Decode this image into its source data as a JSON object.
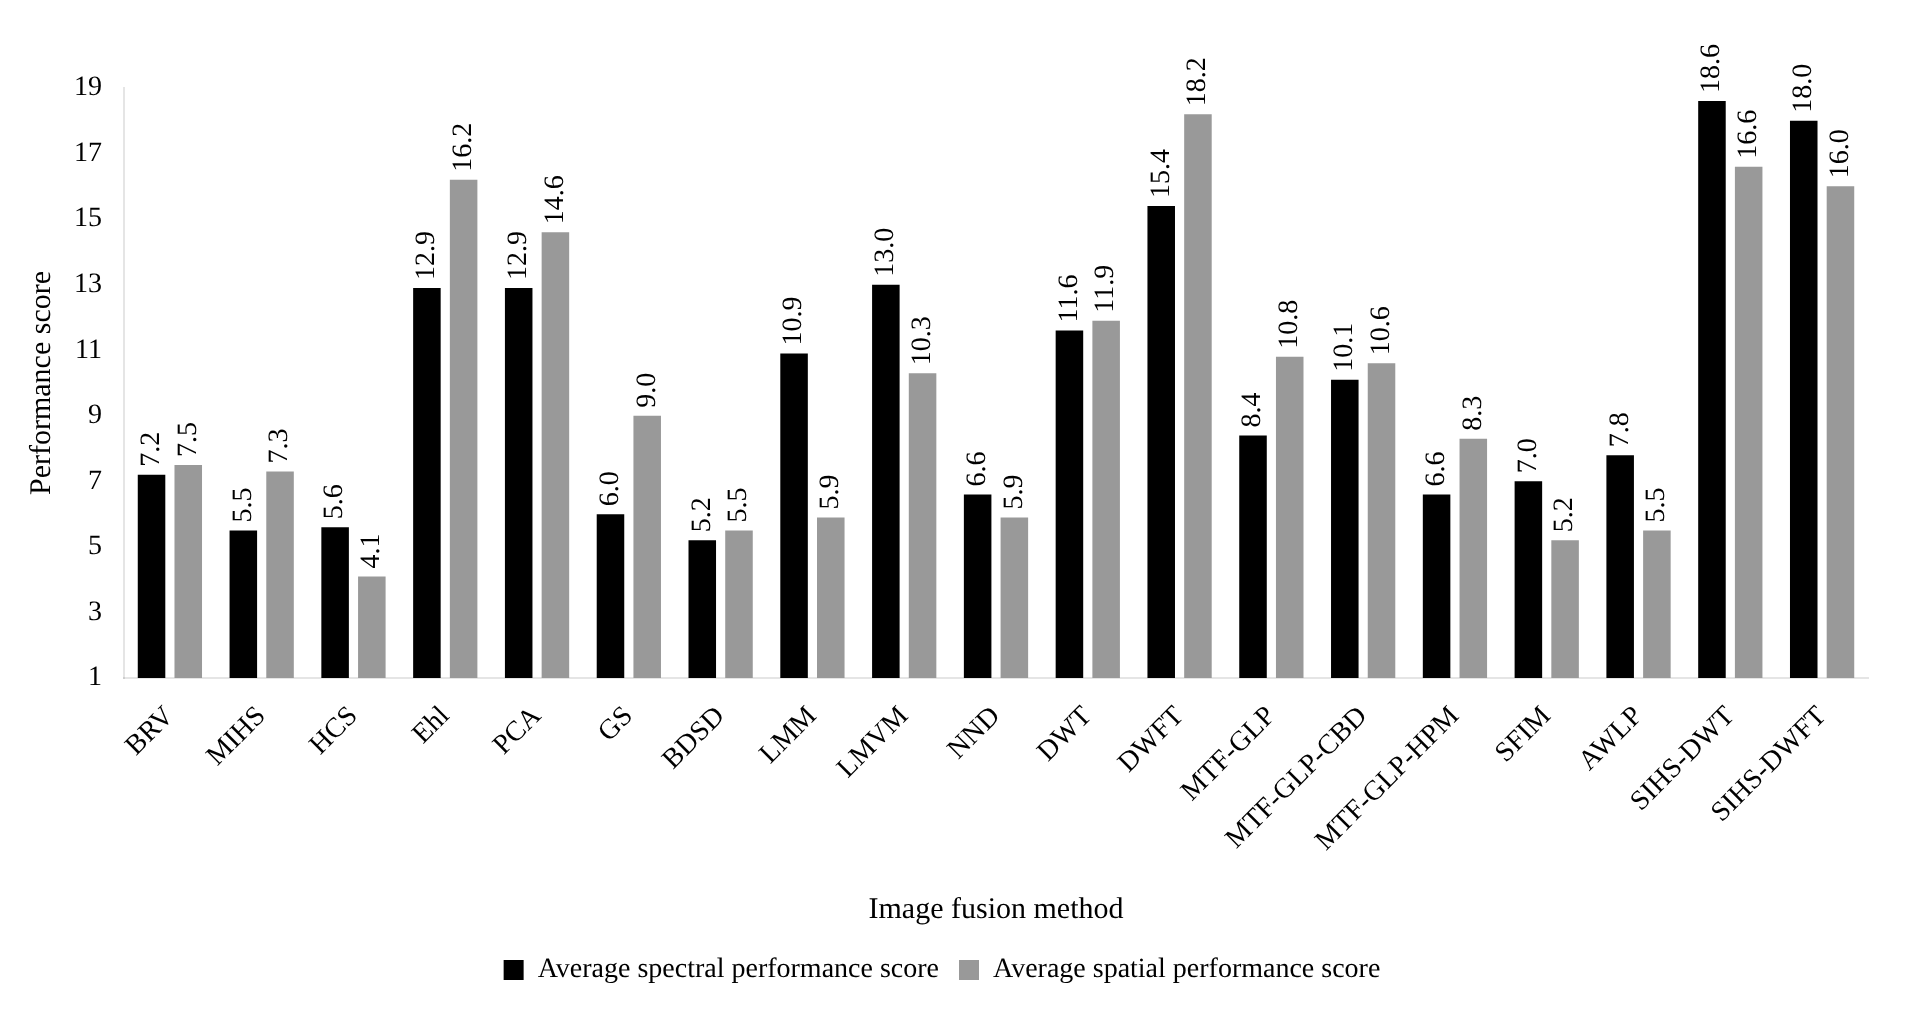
{
  "chart_data": {
    "type": "bar",
    "xlabel": "Image fusion method",
    "ylabel": "Performance score",
    "categories": [
      "BRV",
      "MIHS",
      "HCS",
      "Ehl",
      "PCA",
      "GS",
      "BDSD",
      "LMM",
      "LMVM",
      "NND",
      "DWT",
      "DWFT",
      "MTF-GLP",
      "MTF-GLP-CBD",
      "MTF-GLP-HPM",
      "SFIM",
      "AWLP",
      "SIHS-DWT",
      "SIHS-DWFT"
    ],
    "series": [
      {
        "name": "Average spectral performance score",
        "color": "#000000",
        "values": [
          7.2,
          5.5,
          5.6,
          12.9,
          12.9,
          6.0,
          5.2,
          10.9,
          13.0,
          6.6,
          11.6,
          15.4,
          8.4,
          10.1,
          6.6,
          7.0,
          7.8,
          18.6,
          18.0
        ],
        "value_labels": [
          "7.2",
          "5.5",
          "5.6",
          "12.9",
          "12.9",
          "6.0",
          "5.2",
          "10.9",
          "13.0",
          "6.6",
          "11.6",
          "15.4",
          "8.4",
          "10.1",
          "6.6",
          "7.0",
          "7.8",
          "18.6",
          "18.0"
        ]
      },
      {
        "name": "Average spatial performance score",
        "color": "#999999",
        "values": [
          7.5,
          7.3,
          4.1,
          16.2,
          14.6,
          9.0,
          5.5,
          5.9,
          10.3,
          5.9,
          11.9,
          18.2,
          10.8,
          10.6,
          8.3,
          5.2,
          5.5,
          16.6,
          16.0
        ],
        "value_labels": [
          "7.5",
          "7.3",
          "4.1",
          "16.2",
          "14.6",
          "9.0",
          "5.5",
          "5.9",
          "10.3",
          "5.9",
          "11.9",
          "18.2",
          "10.8",
          "10.6",
          "8.3",
          "5.2",
          "5.5",
          "16.6",
          "16.0"
        ]
      }
    ],
    "ylim": [
      1,
      19
    ],
    "yticks": [
      1,
      3,
      5,
      7,
      9,
      11,
      13,
      15,
      17,
      19
    ],
    "grid": false,
    "legend": "bottom"
  }
}
